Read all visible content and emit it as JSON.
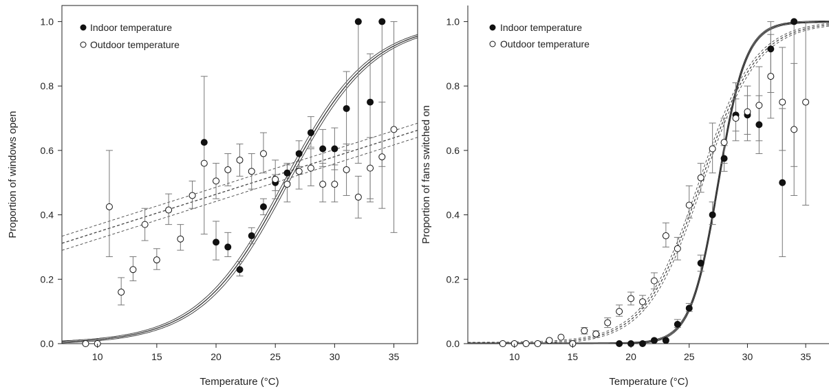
{
  "chart_data": [
    {
      "type": "scatter",
      "xlabel": "Temperature (°C)",
      "ylabel": "Proportion of windows open",
      "xlim": [
        7,
        37
      ],
      "ylim": [
        0,
        1.05
      ],
      "xticks": [
        10,
        15,
        20,
        25,
        30,
        35
      ],
      "yticks": [
        0.0,
        0.2,
        0.4,
        0.6,
        0.8,
        1.0
      ],
      "grid": false,
      "legend_position": "top-left",
      "series": [
        {
          "name": "Indoor temperature",
          "marker": "filled-circle",
          "points": [
            {
              "x": 19,
              "y": 0.625
            },
            {
              "x": 20,
              "y": 0.315,
              "lo": 0.26,
              "hi": 0.38
            },
            {
              "x": 21,
              "y": 0.3,
              "lo": 0.27,
              "hi": 0.345
            },
            {
              "x": 22,
              "y": 0.23,
              "lo": 0.21,
              "hi": 0.255
            },
            {
              "x": 23,
              "y": 0.335,
              "lo": 0.31,
              "hi": 0.36
            },
            {
              "x": 24,
              "y": 0.425,
              "lo": 0.4,
              "hi": 0.45
            },
            {
              "x": 25,
              "y": 0.5,
              "lo": 0.475,
              "hi": 0.525
            },
            {
              "x": 26,
              "y": 0.53,
              "lo": 0.5,
              "hi": 0.56
            },
            {
              "x": 27,
              "y": 0.59,
              "lo": 0.55,
              "hi": 0.63
            },
            {
              "x": 28,
              "y": 0.655,
              "lo": 0.61,
              "hi": 0.705
            },
            {
              "x": 29,
              "y": 0.605,
              "lo": 0.55,
              "hi": 0.665
            },
            {
              "x": 30,
              "y": 0.605,
              "lo": 0.54,
              "hi": 0.67
            },
            {
              "x": 31,
              "y": 0.73,
              "lo": 0.6,
              "hi": 0.845
            },
            {
              "x": 32,
              "y": 1.0,
              "lo": 0.56,
              "hi": 1.0
            },
            {
              "x": 33,
              "y": 0.75,
              "lo": 0.45,
              "hi": 0.9
            },
            {
              "x": 34,
              "y": 1.0,
              "lo": 0.55,
              "hi": 1.0
            }
          ],
          "fit": {
            "form": "logistic",
            "x0": 25.9,
            "k": 0.275,
            "band": 0.012,
            "style": "solid"
          }
        },
        {
          "name": "Outdoor temperature",
          "marker": "open-circle",
          "points": [
            {
              "x": 9,
              "y": 0.0
            },
            {
              "x": 10,
              "y": 0.0
            },
            {
              "x": 11,
              "y": 0.425,
              "lo": 0.27,
              "hi": 0.6
            },
            {
              "x": 12,
              "y": 0.16,
              "lo": 0.12,
              "hi": 0.205
            },
            {
              "x": 13,
              "y": 0.23,
              "lo": 0.195,
              "hi": 0.27
            },
            {
              "x": 14,
              "y": 0.37,
              "lo": 0.32,
              "hi": 0.42
            },
            {
              "x": 15,
              "y": 0.26,
              "lo": 0.23,
              "hi": 0.295
            },
            {
              "x": 16,
              "y": 0.415,
              "lo": 0.37,
              "hi": 0.465
            },
            {
              "x": 17,
              "y": 0.325,
              "lo": 0.29,
              "hi": 0.37
            },
            {
              "x": 18,
              "y": 0.46,
              "lo": 0.42,
              "hi": 0.505
            },
            {
              "x": 19,
              "y": 0.56,
              "lo": 0.34,
              "hi": 0.83
            },
            {
              "x": 20,
              "y": 0.505,
              "lo": 0.45,
              "hi": 0.56
            },
            {
              "x": 21,
              "y": 0.54,
              "lo": 0.49,
              "hi": 0.59
            },
            {
              "x": 22,
              "y": 0.57,
              "lo": 0.52,
              "hi": 0.62
            },
            {
              "x": 23,
              "y": 0.535,
              "lo": 0.48,
              "hi": 0.59
            },
            {
              "x": 24,
              "y": 0.59,
              "lo": 0.53,
              "hi": 0.655
            },
            {
              "x": 25,
              "y": 0.51,
              "lo": 0.45,
              "hi": 0.57
            },
            {
              "x": 26,
              "y": 0.495,
              "lo": 0.44,
              "hi": 0.555
            },
            {
              "x": 27,
              "y": 0.535,
              "lo": 0.48,
              "hi": 0.595
            },
            {
              "x": 28,
              "y": 0.545,
              "lo": 0.49,
              "hi": 0.605
            },
            {
              "x": 29,
              "y": 0.495,
              "lo": 0.44,
              "hi": 0.56
            },
            {
              "x": 30,
              "y": 0.495,
              "lo": 0.44,
              "hi": 0.555
            },
            {
              "x": 31,
              "y": 0.54,
              "lo": 0.46,
              "hi": 0.62
            },
            {
              "x": 32,
              "y": 0.455,
              "lo": 0.39,
              "hi": 0.52
            },
            {
              "x": 33,
              "y": 0.545,
              "lo": 0.44,
              "hi": 0.64
            },
            {
              "x": 34,
              "y": 0.58,
              "lo": 0.42,
              "hi": 0.75
            },
            {
              "x": 35,
              "y": 0.665,
              "lo": 0.345,
              "hi": 1.0
            }
          ],
          "fit": {
            "form": "linear",
            "intercept": 0.2297,
            "slope": 0.0117,
            "band": 0.022,
            "style": "dashed"
          }
        }
      ]
    },
    {
      "type": "scatter",
      "xlabel": "Temperature (°C)",
      "ylabel": "Proportion of fans switched on",
      "xlim": [
        6,
        37
      ],
      "ylim": [
        0,
        1.05
      ],
      "xticks": [
        10,
        15,
        20,
        25,
        30,
        35
      ],
      "yticks": [
        0.0,
        0.2,
        0.4,
        0.6,
        0.8,
        1.0
      ],
      "grid": false,
      "legend_position": "top-left",
      "series": [
        {
          "name": "Indoor temperature",
          "marker": "filled-circle",
          "points": [
            {
              "x": 19,
              "y": 0.0
            },
            {
              "x": 20,
              "y": 0.0
            },
            {
              "x": 21,
              "y": 0.0
            },
            {
              "x": 22,
              "y": 0.01
            },
            {
              "x": 23,
              "y": 0.01
            },
            {
              "x": 24,
              "y": 0.06,
              "lo": 0.05,
              "hi": 0.075
            },
            {
              "x": 25,
              "y": 0.11,
              "lo": 0.1,
              "hi": 0.125
            },
            {
              "x": 26,
              "y": 0.25,
              "lo": 0.225,
              "hi": 0.275
            },
            {
              "x": 27,
              "y": 0.4,
              "lo": 0.37,
              "hi": 0.44
            },
            {
              "x": 28,
              "y": 0.575,
              "lo": 0.535,
              "hi": 0.615
            },
            {
              "x": 29,
              "y": 0.71,
              "lo": 0.66,
              "hi": 0.76
            },
            {
              "x": 30,
              "y": 0.71,
              "lo": 0.65,
              "hi": 0.77
            },
            {
              "x": 31,
              "y": 0.68,
              "lo": 0.59,
              "hi": 0.77
            },
            {
              "x": 32,
              "y": 0.915,
              "lo": 0.78,
              "hi": 1.0
            },
            {
              "x": 33,
              "y": 0.5,
              "lo": 0.27,
              "hi": 0.73
            },
            {
              "x": 34,
              "y": 1.0,
              "lo": 0.55,
              "hi": 1.0
            }
          ],
          "fit": {
            "form": "logistic",
            "x0": 27.5,
            "k": 0.85,
            "band": 0.01,
            "style": "solid"
          }
        },
        {
          "name": "Outdoor temperature",
          "marker": "open-circle",
          "points": [
            {
              "x": 9,
              "y": 0.0
            },
            {
              "x": 10,
              "y": 0.0
            },
            {
              "x": 11,
              "y": 0.0
            },
            {
              "x": 12,
              "y": 0.0
            },
            {
              "x": 13,
              "y": 0.01
            },
            {
              "x": 14,
              "y": 0.02
            },
            {
              "x": 15,
              "y": 0.0
            },
            {
              "x": 16,
              "y": 0.04,
              "lo": 0.03,
              "hi": 0.05
            },
            {
              "x": 17,
              "y": 0.03,
              "lo": 0.02,
              "hi": 0.04
            },
            {
              "x": 18,
              "y": 0.065,
              "lo": 0.05,
              "hi": 0.08
            },
            {
              "x": 19,
              "y": 0.1,
              "lo": 0.085,
              "hi": 0.12
            },
            {
              "x": 20,
              "y": 0.14,
              "lo": 0.12,
              "hi": 0.16
            },
            {
              "x": 21,
              "y": 0.13,
              "lo": 0.11,
              "hi": 0.15
            },
            {
              "x": 22,
              "y": 0.195,
              "lo": 0.17,
              "hi": 0.22
            },
            {
              "x": 23,
              "y": 0.335,
              "lo": 0.3,
              "hi": 0.375
            },
            {
              "x": 24,
              "y": 0.295,
              "lo": 0.26,
              "hi": 0.33
            },
            {
              "x": 25,
              "y": 0.43,
              "lo": 0.39,
              "hi": 0.49
            },
            {
              "x": 26,
              "y": 0.515,
              "lo": 0.47,
              "hi": 0.56
            },
            {
              "x": 27,
              "y": 0.605,
              "lo": 0.53,
              "hi": 0.685
            },
            {
              "x": 28,
              "y": 0.625,
              "lo": 0.56,
              "hi": 0.7
            },
            {
              "x": 29,
              "y": 0.7,
              "lo": 0.63,
              "hi": 0.81
            },
            {
              "x": 30,
              "y": 0.72,
              "lo": 0.63,
              "hi": 0.8
            },
            {
              "x": 31,
              "y": 0.74,
              "lo": 0.63,
              "hi": 0.86
            },
            {
              "x": 32,
              "y": 0.83,
              "lo": 0.7,
              "hi": 0.96
            },
            {
              "x": 33,
              "y": 0.75,
              "lo": 0.6,
              "hi": 0.92
            },
            {
              "x": 34,
              "y": 0.665,
              "lo": 0.46,
              "hi": 0.87
            },
            {
              "x": 35,
              "y": 0.75,
              "lo": 0.43,
              "hi": 1.0
            }
          ],
          "fit": {
            "form": "logistic",
            "x0": 26.0,
            "k": 0.42,
            "band": 0.015,
            "style": "dashed"
          }
        }
      ]
    }
  ]
}
